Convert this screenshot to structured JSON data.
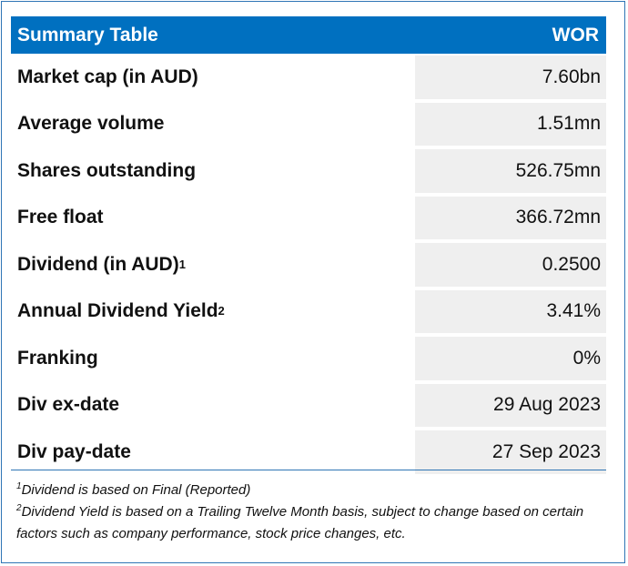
{
  "table": {
    "title": "Summary Table",
    "ticker": "WOR",
    "rows": [
      {
        "label": "Market cap (in AUD)",
        "sup": "",
        "value": "7.60bn"
      },
      {
        "label": "Average volume",
        "sup": "",
        "value": "1.51mn"
      },
      {
        "label": "Shares outstanding",
        "sup": "",
        "value": "526.75mn"
      },
      {
        "label": "Free float",
        "sup": "",
        "value": "366.72mn"
      },
      {
        "label": "Dividend (in AUD)",
        "sup": "1",
        "value": "0.2500"
      },
      {
        "label": "Annual Dividend Yield",
        "sup": "2",
        "value": "3.41%"
      },
      {
        "label": "Franking",
        "sup": "",
        "value": "0%"
      },
      {
        "label": "Div ex-date",
        "sup": "",
        "value": "29 Aug 2023"
      },
      {
        "label": "Div pay-date",
        "sup": "",
        "value": "27 Sep 2023"
      }
    ]
  },
  "notes": [
    {
      "mark": "1",
      "text": "Dividend is based on Final (Reported)"
    },
    {
      "mark": "2",
      "text": "Dividend Yield is based on a Trailing Twelve Month basis, subject to change based on certain factors such as company performance, stock price changes, etc."
    }
  ],
  "colors": {
    "header": "#0070c0",
    "border": "#2f75b5",
    "cell": "#efefef"
  }
}
